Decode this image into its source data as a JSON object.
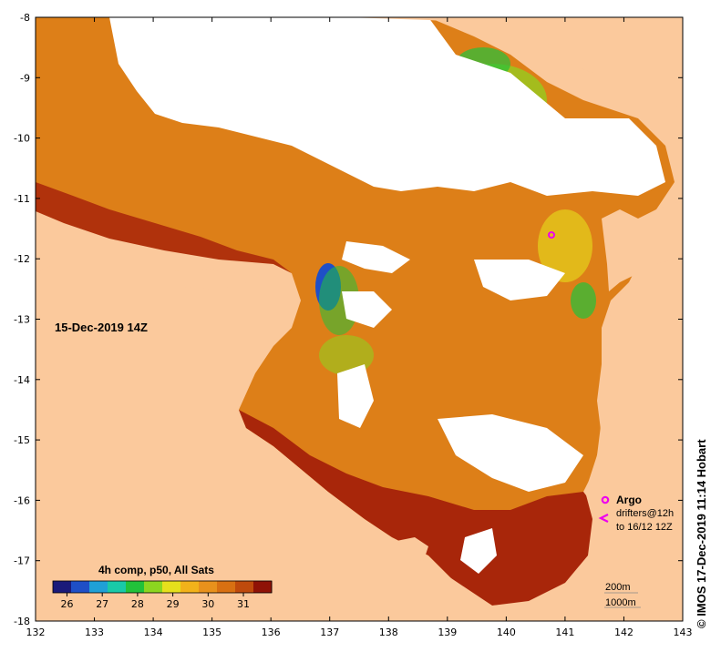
{
  "map": {
    "date_label": "15-Dec-2019 14Z",
    "x_ticks": [
      "132",
      "133",
      "134",
      "135",
      "136",
      "137",
      "138",
      "139",
      "140",
      "141",
      "142",
      "143"
    ],
    "y_ticks": [
      "-8",
      "-9",
      "-10",
      "-11",
      "-12",
      "-13",
      "-14",
      "-15",
      "-16",
      "-17",
      "-18"
    ],
    "lon_range": [
      132,
      143
    ],
    "lat_range": [
      -18,
      -8
    ],
    "land_color": "#fbc99c",
    "cloud_color": "#ffffff"
  },
  "colorbar": {
    "title": "4h comp, p50, All Sats",
    "ticks": [
      "26",
      "27",
      "28",
      "29",
      "30",
      "31"
    ],
    "range": [
      25.6,
      31.8
    ],
    "colors": [
      "#1a1a7a",
      "#1f4fc7",
      "#1fa0d6",
      "#19c9a8",
      "#22c23a",
      "#8cd620",
      "#e6e01c",
      "#f2b21a",
      "#e8911c",
      "#d87012",
      "#bf4a0c",
      "#8f1206"
    ]
  },
  "legend": {
    "argo": "Argo",
    "drifters_line1": "drifters@12h",
    "drifters_line2": "to 16/12 12Z",
    "depth_200": "200m",
    "depth_1000": "1000m",
    "argo_icon": "argo-float-icon",
    "drifter_icon": "drifter-chevron-icon",
    "marker_color": "#ee00ee"
  },
  "credit": "© IMOS 17-Dec-2019 11:14 Hobart"
}
